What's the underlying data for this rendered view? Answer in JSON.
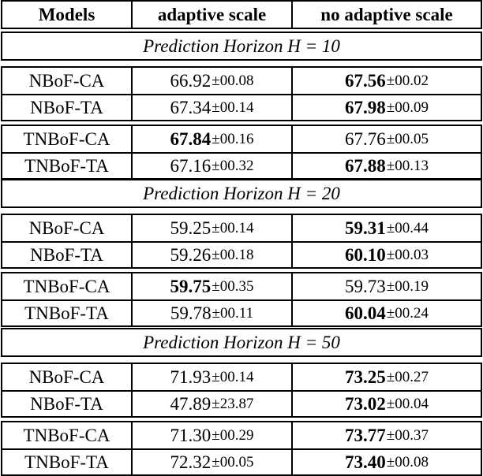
{
  "headers": [
    "Models",
    "adaptive scale",
    "no adaptive scale"
  ],
  "sections": [
    {
      "horizon_label": "Prediction Horizon",
      "horizon_var": "H",
      "horizon_value": "10",
      "groups": [
        [
          {
            "model": "NBoF-CA",
            "a_main": "66.92",
            "a_pm": "±00.08",
            "a_best": false,
            "b_main": "67.56",
            "b_pm": "±00.02",
            "b_best": true
          },
          {
            "model": "NBoF-TA",
            "a_main": "67.34",
            "a_pm": "±00.14",
            "a_best": false,
            "b_main": "67.98",
            "b_pm": "±00.09",
            "b_best": true
          }
        ],
        [
          {
            "model": "TNBoF-CA",
            "a_main": "67.84",
            "a_pm": "±00.16",
            "a_best": true,
            "b_main": "67.76",
            "b_pm": "±00.05",
            "b_best": false
          },
          {
            "model": "TNBoF-TA",
            "a_main": "67.16",
            "a_pm": "±00.32",
            "a_best": false,
            "b_main": "67.88",
            "b_pm": "±00.13",
            "b_best": true
          }
        ]
      ]
    },
    {
      "horizon_label": "Prediction Horizon",
      "horizon_var": "H",
      "horizon_value": "20",
      "groups": [
        [
          {
            "model": "NBoF-CA",
            "a_main": "59.25",
            "a_pm": "±00.14",
            "a_best": false,
            "b_main": "59.31",
            "b_pm": "±00.44",
            "b_best": true
          },
          {
            "model": "NBoF-TA",
            "a_main": "59.26",
            "a_pm": "±00.18",
            "a_best": false,
            "b_main": "60.10",
            "b_pm": "±00.03",
            "b_best": true
          }
        ],
        [
          {
            "model": "TNBoF-CA",
            "a_main": "59.75",
            "a_pm": "±00.35",
            "a_best": true,
            "b_main": "59.73",
            "b_pm": "±00.19",
            "b_best": false
          },
          {
            "model": "TNBoF-TA",
            "a_main": "59.78",
            "a_pm": "±00.11",
            "a_best": false,
            "b_main": "60.04",
            "b_pm": "±00.24",
            "b_best": true
          }
        ]
      ]
    },
    {
      "horizon_label": "Prediction Horizon",
      "horizon_var": "H",
      "horizon_value": "50",
      "groups": [
        [
          {
            "model": "NBoF-CA",
            "a_main": "71.93",
            "a_pm": "±00.14",
            "a_best": false,
            "b_main": "73.25",
            "b_pm": "±00.27",
            "b_best": true
          },
          {
            "model": "NBoF-TA",
            "a_main": "47.89",
            "a_pm": "±23.87",
            "a_best": false,
            "b_main": "73.02",
            "b_pm": "±00.04",
            "b_best": true
          }
        ],
        [
          {
            "model": "TNBoF-CA",
            "a_main": "71.30",
            "a_pm": "±00.29",
            "a_best": false,
            "b_main": "73.77",
            "b_pm": "±00.37",
            "b_best": true
          },
          {
            "model": "TNBoF-TA",
            "a_main": "72.32",
            "a_pm": "±00.05",
            "a_best": false,
            "b_main": "73.40",
            "b_pm": "±00.08",
            "b_best": true
          }
        ]
      ]
    }
  ]
}
